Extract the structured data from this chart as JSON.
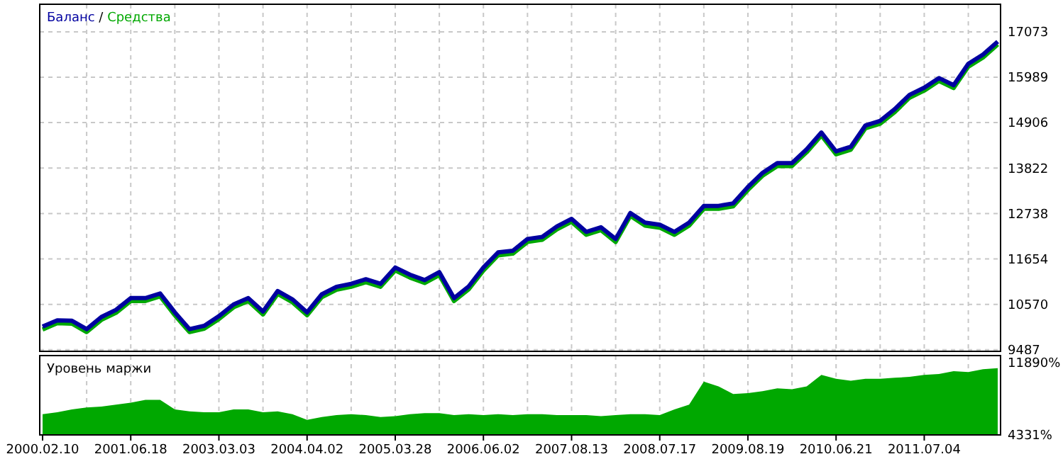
{
  "chart_data": [
    {
      "type": "line",
      "categories": [
        null,
        null,
        null,
        null,
        null,
        null,
        null,
        null,
        null,
        null,
        null,
        null,
        null,
        null,
        null,
        null,
        null,
        null,
        null,
        null,
        null,
        null,
        null,
        null,
        null,
        null,
        null,
        null,
        null,
        null,
        null,
        null,
        null,
        null,
        null,
        null,
        null,
        null,
        null,
        null,
        null,
        null,
        null,
        null,
        null,
        null,
        null,
        null,
        null,
        null,
        null,
        null,
        null,
        null,
        null,
        null,
        null,
        null,
        null,
        null,
        null,
        null,
        null,
        null,
        null,
        null
      ],
      "series": [
        {
          "name": "Средства",
          "color": "#00a800",
          "values": [
            9970,
            10120,
            10110,
            9910,
            10200,
            10370,
            10650,
            10650,
            10760,
            10310,
            9910,
            9990,
            10220,
            10500,
            10650,
            10330,
            10820,
            10620,
            10310,
            10740,
            10920,
            10990,
            11100,
            10990,
            11380,
            11210,
            11080,
            11270,
            10650,
            10930,
            11380,
            11740,
            11780,
            12060,
            12110,
            12360,
            12540,
            12230,
            12340,
            12060,
            12680,
            12450,
            12400,
            12230,
            12450,
            12850,
            12850,
            12910,
            13300,
            13640,
            13870,
            13870,
            14200,
            14600,
            14150,
            14260,
            14770,
            14880,
            15160,
            15500,
            15670,
            15900,
            15730,
            16240,
            16460,
            16770
          ]
        },
        {
          "name": "Баланс",
          "color": "#0000a0",
          "values": [
            10040,
            10190,
            10180,
            9980,
            10270,
            10440,
            10720,
            10720,
            10830,
            10380,
            9980,
            10060,
            10290,
            10570,
            10720,
            10400,
            10890,
            10690,
            10380,
            10810,
            10990,
            11060,
            11170,
            11060,
            11450,
            11280,
            11150,
            11340,
            10720,
            11000,
            11450,
            11810,
            11850,
            12130,
            12180,
            12430,
            12610,
            12300,
            12410,
            12130,
            12750,
            12520,
            12470,
            12300,
            12520,
            12920,
            12920,
            12980,
            13370,
            13710,
            13940,
            13940,
            14270,
            14670,
            14220,
            14330,
            14840,
            14950,
            15230,
            15570,
            15740,
            15970,
            15800,
            16310,
            16530,
            16840
          ]
        }
      ],
      "ylim": [
        9450,
        17730
      ],
      "yticks": [
        9487,
        10570,
        11654,
        12738,
        13822,
        14906,
        15989,
        17073
      ],
      "grid": true,
      "legend": "top left",
      "legend_title": "/",
      "tick_labels": "y"
    },
    {
      "type": "area",
      "title": "Уровень маржи",
      "categories": [
        "2000.02.10",
        null,
        null,
        null,
        null,
        null,
        "2001.06.18",
        null,
        null,
        null,
        null,
        null,
        "2003.03.03",
        null,
        null,
        null,
        null,
        null,
        "2004.04.02",
        null,
        null,
        null,
        null,
        null,
        "2005.03.28",
        null,
        null,
        null,
        null,
        null,
        "2006.06.02",
        null,
        null,
        null,
        null,
        null,
        "2007.08.13",
        null,
        null,
        null,
        null,
        null,
        "2008.07.17",
        null,
        null,
        null,
        null,
        null,
        "2009.08.19",
        null,
        null,
        null,
        null,
        null,
        "2010.06.21",
        null,
        null,
        null,
        null,
        null,
        "2011.07.04",
        null,
        null,
        null,
        null,
        null
      ],
      "series": [
        {
          "color": "#00a800",
          "values": [
            6500,
            6700,
            7000,
            7200,
            7300,
            7500,
            7700,
            8000,
            8000,
            7000,
            6800,
            6700,
            6700,
            7000,
            7000,
            6700,
            6800,
            6500,
            5900,
            6200,
            6400,
            6500,
            6400,
            6200,
            6300,
            6500,
            6600,
            6600,
            6400,
            6500,
            6400,
            6500,
            6400,
            6500,
            6500,
            6400,
            6400,
            6400,
            6300,
            6400,
            6500,
            6500,
            6400,
            7000,
            7500,
            9900,
            9400,
            8600,
            8700,
            8900,
            9200,
            9100,
            9400,
            10600,
            10200,
            10000,
            10200,
            10200,
            10300,
            10400,
            10600,
            10700,
            11000,
            10900,
            11200,
            11300
          ]
        }
      ],
      "ylim": [
        4331,
        12620
      ],
      "yticks": [
        {
          "value": 4331,
          "label": "4331%"
        },
        {
          "value": 11890,
          "label": "11890%"
        }
      ],
      "grid": "x"
    }
  ]
}
